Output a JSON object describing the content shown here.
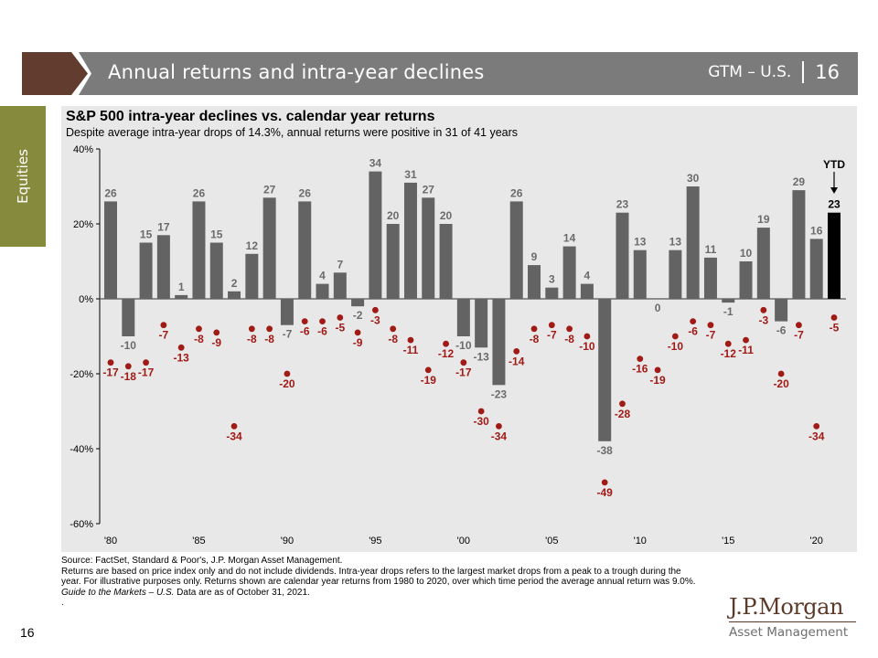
{
  "header": {
    "title": "Annual returns and intra-year declines",
    "guide_label": "GTM – U.S.",
    "page_number": "16",
    "colors": {
      "chevron": "#623c2e",
      "bar": "#7b7b7b"
    }
  },
  "side_tab": {
    "label": "Equities",
    "color": "#858a3c"
  },
  "chart_title": "S&P 500 intra-year declines vs. calendar year returns",
  "chart_subtitle": "Despite average intra-year drops of 14.3%, annual returns were positive in 31 of 41 years",
  "chart_data": {
    "type": "bar",
    "title": "S&P 500 intra-year declines vs. calendar year returns",
    "subtitle": "Despite average intra-year drops of 14.3%, annual returns were positive in 31 of 41 years",
    "xlabel": "",
    "ylabel": "",
    "ylim": [
      -60,
      40
    ],
    "yticks": [
      40,
      20,
      0,
      -20,
      -40,
      -60
    ],
    "ytick_labels": [
      "40%",
      "20%",
      "0%",
      "-20%",
      "-40%",
      "-60%"
    ],
    "xtick_labels": [
      {
        "year": 1980,
        "label": "'80"
      },
      {
        "year": 1985,
        "label": "'85"
      },
      {
        "year": 1990,
        "label": "'90"
      },
      {
        "year": 1995,
        "label": "'95"
      },
      {
        "year": 2000,
        "label": "'00"
      },
      {
        "year": 2005,
        "label": "'05"
      },
      {
        "year": 2010,
        "label": "'10"
      },
      {
        "year": 2015,
        "label": "'15"
      },
      {
        "year": 2020,
        "label": "'20"
      }
    ],
    "grid": false,
    "annotation": {
      "text": "YTD",
      "target_year": 2021
    },
    "years": [
      1980,
      1981,
      1982,
      1983,
      1984,
      1985,
      1986,
      1987,
      1988,
      1989,
      1990,
      1991,
      1992,
      1993,
      1994,
      1995,
      1996,
      1997,
      1998,
      1999,
      2000,
      2001,
      2002,
      2003,
      2004,
      2005,
      2006,
      2007,
      2008,
      2009,
      2010,
      2011,
      2012,
      2013,
      2014,
      2015,
      2016,
      2017,
      2018,
      2019,
      2020,
      2021
    ],
    "series": [
      {
        "name": "Calendar year return",
        "kind": "bar",
        "color": "#636363",
        "ytd_color": "#000000",
        "values": [
          26,
          -10,
          15,
          17,
          1,
          26,
          15,
          2,
          12,
          27,
          -7,
          26,
          4,
          7,
          -2,
          34,
          20,
          31,
          27,
          20,
          -10,
          -13,
          -23,
          26,
          9,
          3,
          14,
          4,
          -38,
          23,
          13,
          0,
          13,
          30,
          11,
          -1,
          10,
          19,
          -6,
          29,
          16,
          23
        ]
      },
      {
        "name": "Intra-year decline",
        "kind": "scatter",
        "color": "#a01a16",
        "values": [
          -17,
          -18,
          -17,
          -7,
          -13,
          -8,
          -9,
          -34,
          -8,
          -8,
          -20,
          -6,
          -6,
          -5,
          -9,
          -3,
          -8,
          -11,
          -19,
          -12,
          -17,
          -30,
          -34,
          -14,
          -8,
          -7,
          -8,
          -10,
          -49,
          -28,
          -16,
          -19,
          -10,
          -6,
          -7,
          -12,
          -11,
          -3,
          -20,
          -7,
          -34,
          -5
        ]
      }
    ]
  },
  "footnotes": {
    "source": "Source: FactSet, Standard & Poor's, J.P. Morgan Asset Management.",
    "note": "Returns are based on price index only and do not include dividends. Intra-year drops refers to the largest market drops from a peak to a trough during the year. For illustrative purposes only. Returns shown are calendar year returns from 1980 to 2020, over which time period the average annual return was 9.0%.",
    "guide_italic": "Guide to the Markets – U.S.",
    "guide_rest": " Data are as of October 31, 2021.",
    "trailing": "."
  },
  "page_number": "16",
  "logo": {
    "brand": "J.P.Morgan",
    "division": "Asset Management"
  }
}
